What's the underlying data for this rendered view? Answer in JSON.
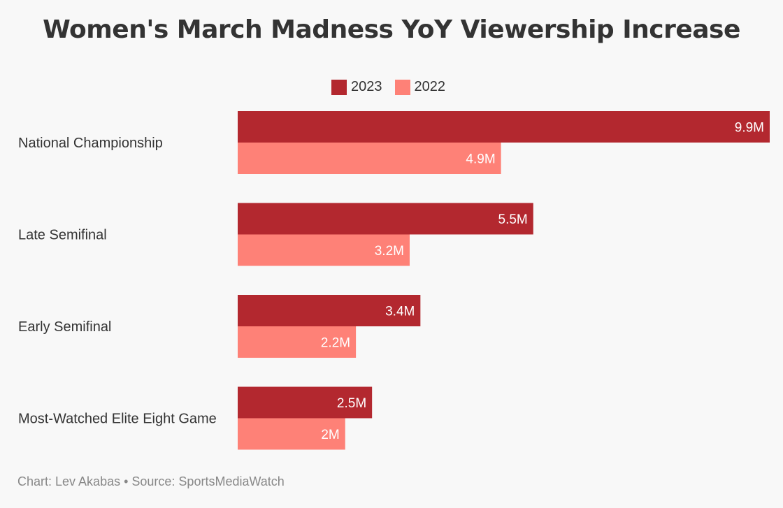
{
  "title": "Women's March Madness YoY Viewership Increase",
  "footer": "Chart: Lev Akabas • Source: SportsMediaWatch",
  "colors": {
    "2023": "#b3282f",
    "2022": "#fe8177",
    "background": "#f8f8f8"
  },
  "chart_data": {
    "type": "bar",
    "orientation": "horizontal",
    "title": "Women's March Madness YoY Viewership Increase",
    "categories": [
      "National Championship",
      "Late Semifinal",
      "Early Semifinal",
      "Most-Watched Elite Eight Game"
    ],
    "series": [
      {
        "name": "2023",
        "values": [
          9.9,
          5.5,
          3.4,
          2.5
        ],
        "labels": [
          "9.9M",
          "5.5M",
          "3.4M",
          "2.5M"
        ],
        "color": "#b3282f"
      },
      {
        "name": "2022",
        "values": [
          4.9,
          3.2,
          2.2,
          2.0
        ],
        "labels": [
          "4.9M",
          "3.2M",
          "2.2M",
          "2M"
        ],
        "color": "#fe8177"
      }
    ],
    "unit": "M",
    "xlim": [
      0,
      9.9
    ],
    "grid": false,
    "legend_position": "top-center"
  }
}
